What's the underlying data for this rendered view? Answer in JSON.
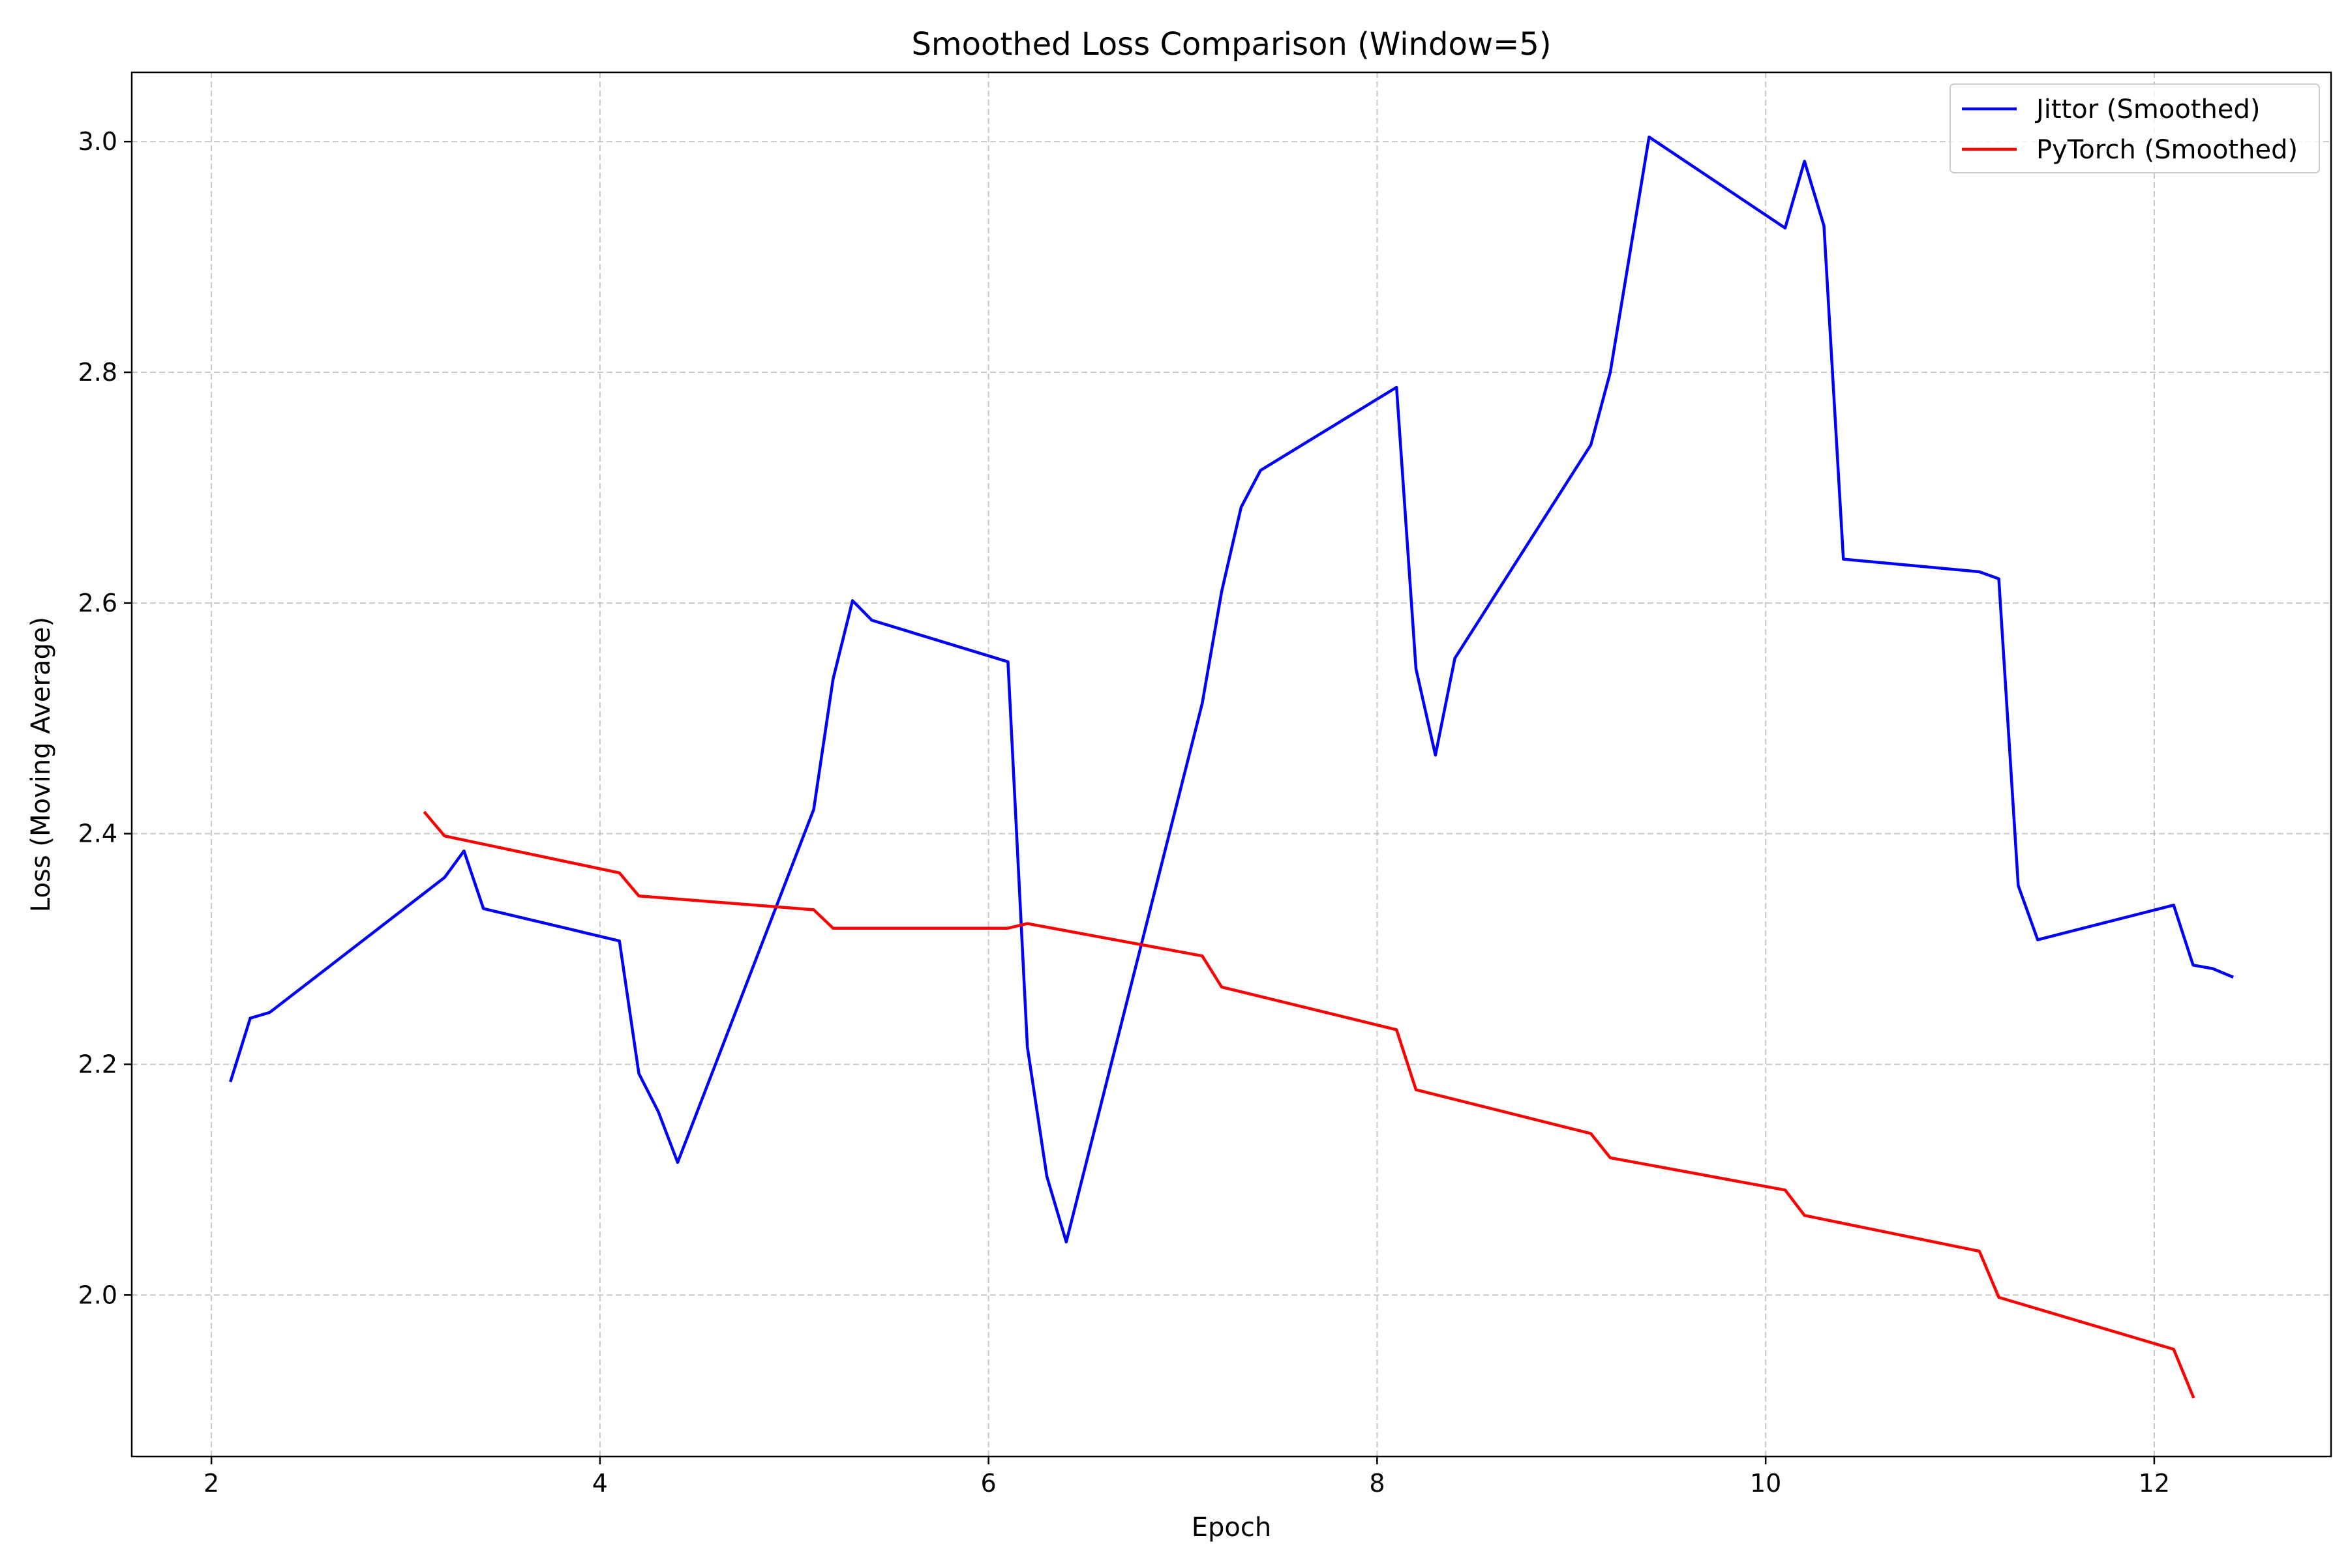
{
  "chart_data": {
    "type": "line",
    "title": "Smoothed Loss Comparison (Window=5)",
    "xlabel": "Epoch",
    "ylabel": "Loss (Moving Average)",
    "xlim": [
      1.59,
      12.91
    ],
    "ylim": [
      1.86,
      3.06
    ],
    "xticks": [
      2,
      4,
      6,
      8,
      10,
      12
    ],
    "yticks": [
      2.0,
      2.2,
      2.4,
      2.6,
      2.8,
      3.0
    ],
    "xtick_labels": [
      "2",
      "4",
      "6",
      "8",
      "10",
      "12"
    ],
    "ytick_labels": [
      "2.0",
      "2.2",
      "2.4",
      "2.6",
      "2.8",
      "3.0"
    ],
    "grid": true,
    "legend_position": "top-right",
    "series": [
      {
        "name": "Jittor (Smoothed)",
        "color": "#0000ff",
        "x": [
          2.1,
          2.2,
          2.3,
          3.2,
          3.3,
          3.4,
          4.1,
          4.2,
          4.3,
          4.4,
          5.1,
          5.2,
          5.3,
          5.4,
          6.1,
          6.2,
          6.3,
          6.4,
          7.1,
          7.2,
          7.3,
          7.4,
          8.1,
          8.2,
          8.3,
          8.4,
          9.1,
          9.2,
          9.4,
          10.1,
          10.2,
          10.3,
          10.4,
          11.1,
          11.2,
          11.3,
          11.4,
          12.1,
          12.2,
          12.3,
          12.4
        ],
        "y": [
          2.186,
          2.24,
          2.245,
          2.362,
          2.385,
          2.335,
          2.307,
          2.192,
          2.159,
          2.115,
          2.421,
          2.534,
          2.602,
          2.585,
          2.549,
          2.215,
          2.103,
          2.046,
          2.513,
          2.61,
          2.683,
          2.715,
          2.787,
          2.543,
          2.468,
          2.552,
          2.737,
          2.8,
          3.004,
          2.925,
          2.983,
          2.927,
          2.638,
          2.627,
          2.621,
          2.355,
          2.308,
          2.338,
          2.286,
          2.283,
          2.276
        ]
      },
      {
        "name": "PyTorch (Smoothed)",
        "color": "#ff0000",
        "x": [
          3.1,
          3.2,
          4.1,
          4.2,
          5.1,
          5.2,
          6.1,
          6.2,
          7.1,
          7.2,
          8.1,
          8.2,
          9.1,
          9.2,
          10.1,
          10.2,
          11.1,
          11.2,
          12.1,
          12.2
        ],
        "y": [
          2.418,
          2.398,
          2.366,
          2.346,
          2.334,
          2.318,
          2.318,
          2.322,
          2.294,
          2.267,
          2.23,
          2.178,
          2.14,
          2.119,
          2.091,
          2.069,
          2.038,
          1.998,
          1.953,
          1.912
        ]
      }
    ]
  }
}
